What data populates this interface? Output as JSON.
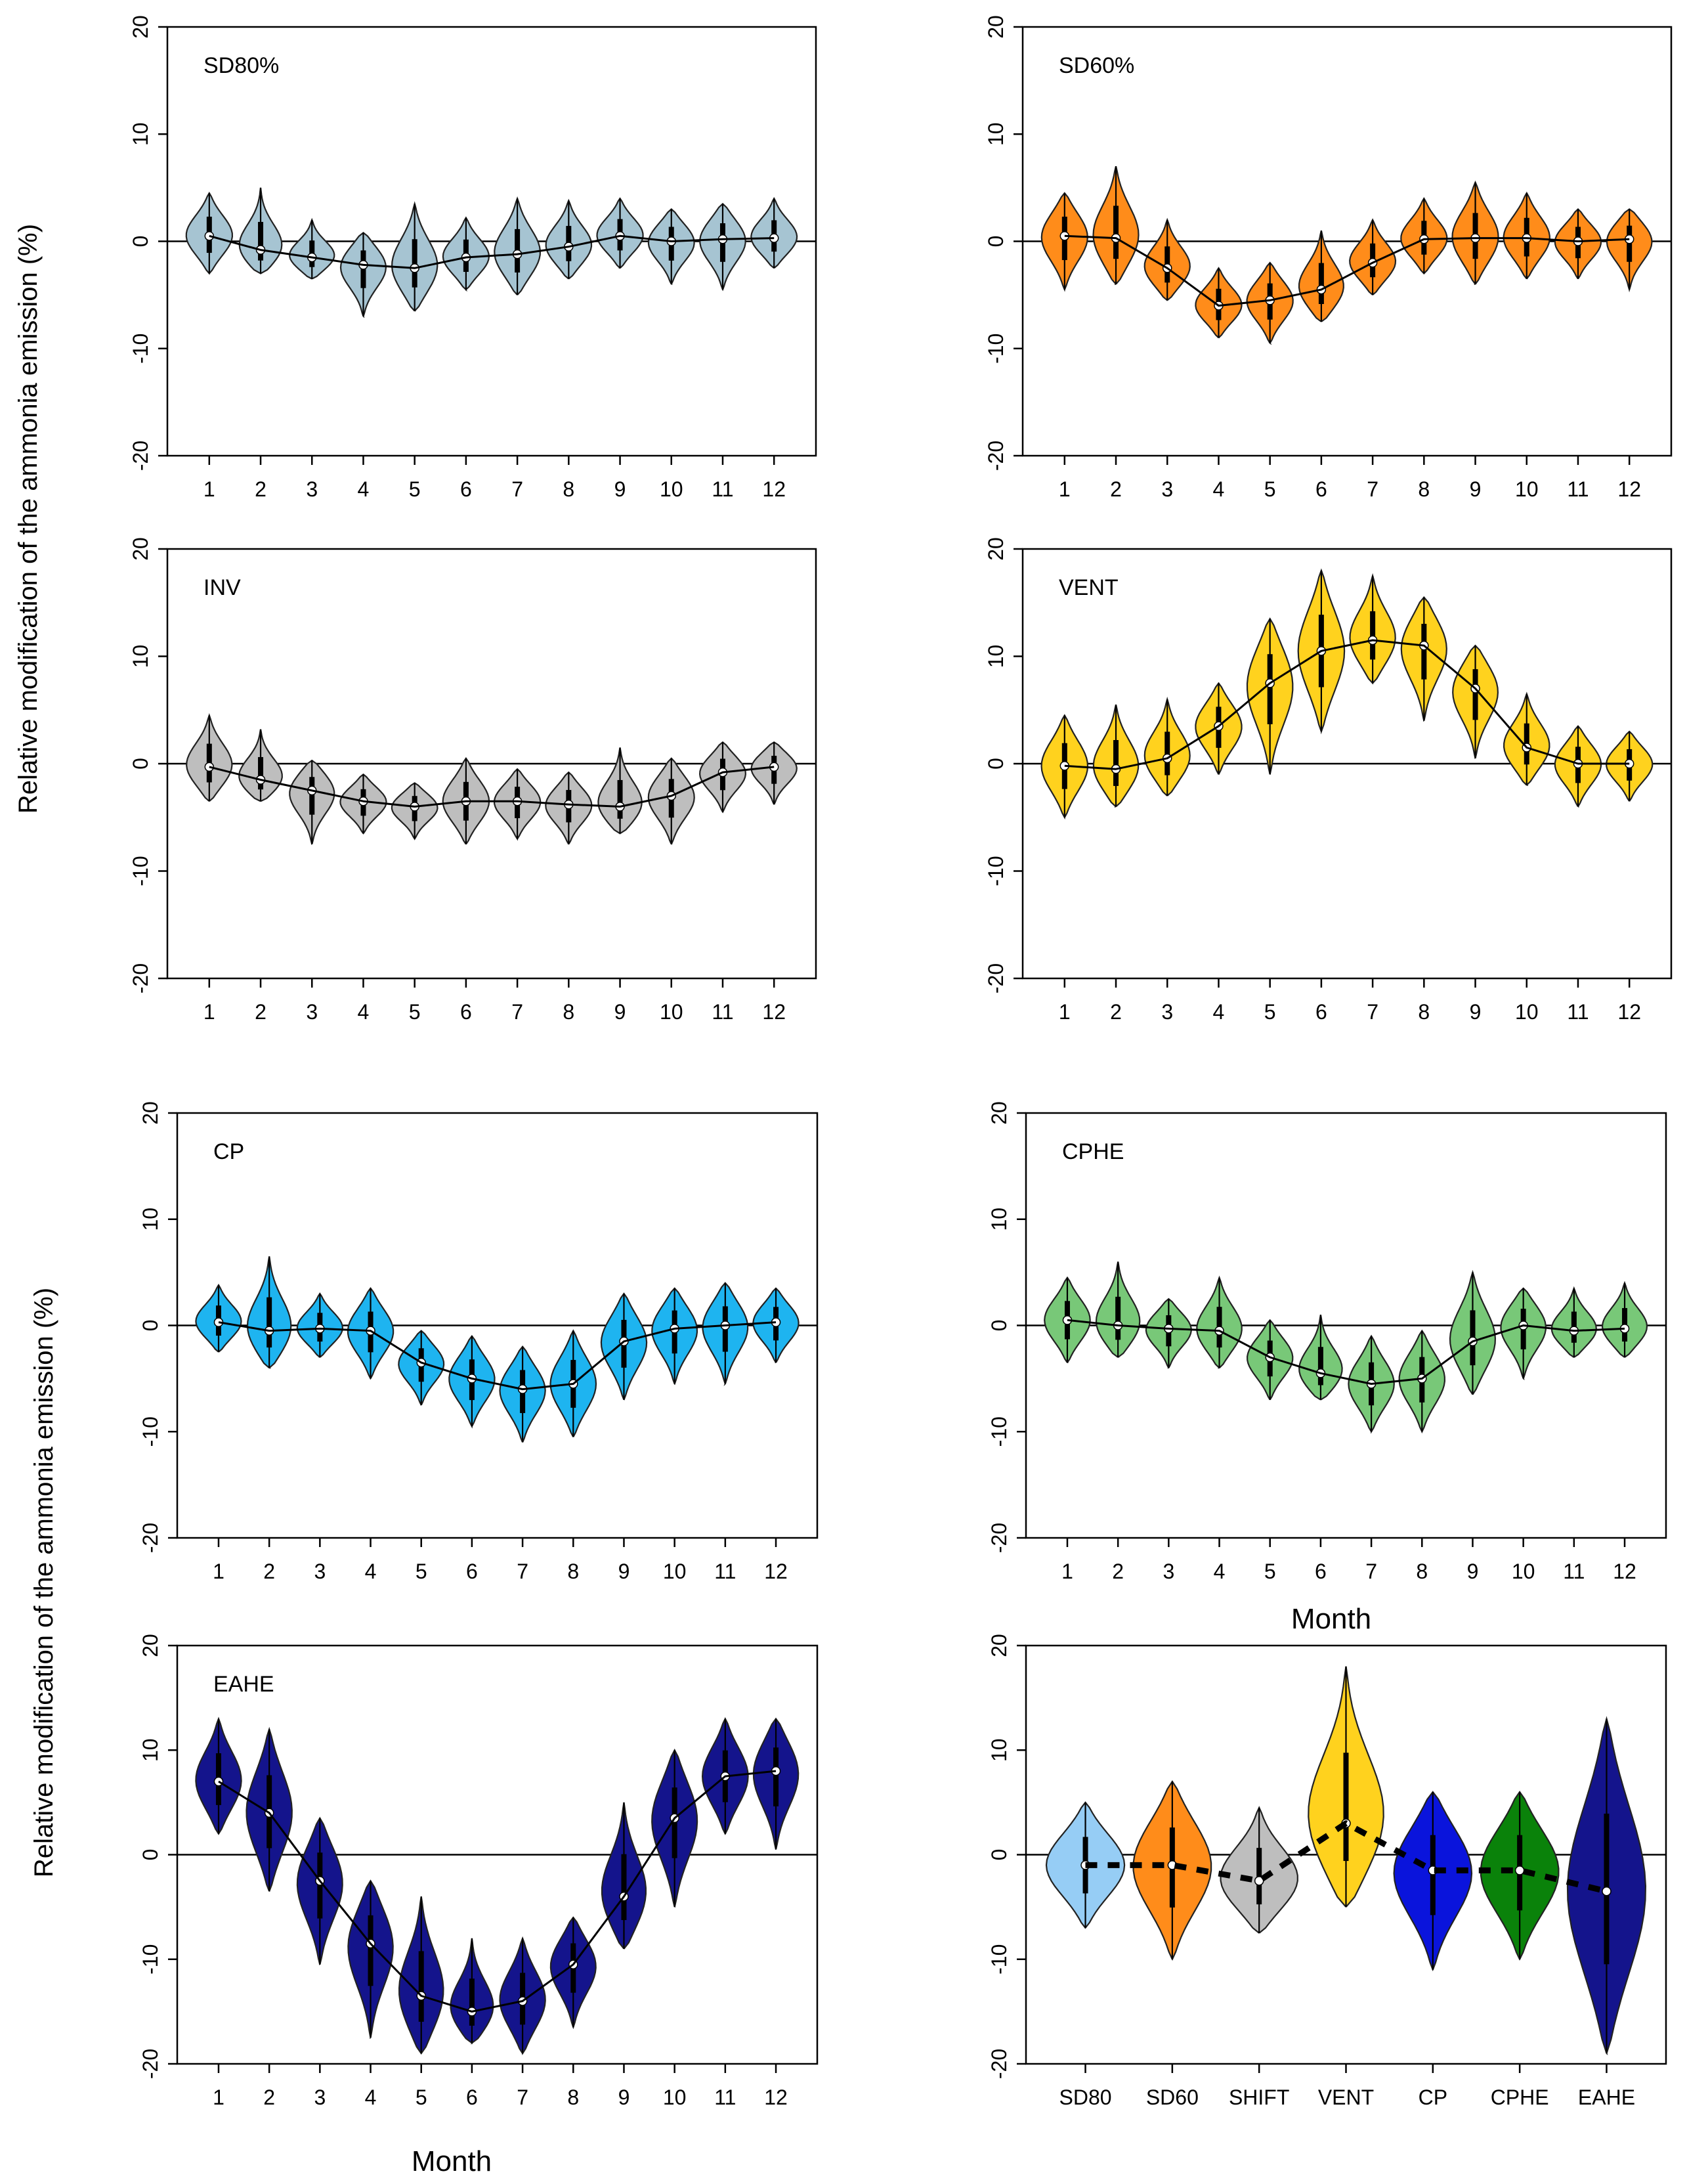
{
  "figure": {
    "ylabel": "Relative modification of the ammonia emission  (%)",
    "xlabel": "Month"
  },
  "chart_data": [
    {
      "type": "violin",
      "title": "SD80%",
      "color": "#A6C4D2",
      "categories": [
        "1",
        "2",
        "3",
        "4",
        "5",
        "6",
        "7",
        "8",
        "9",
        "10",
        "11",
        "12"
      ],
      "medians": [
        0.5,
        -0.8,
        -1.5,
        -2.2,
        -2.5,
        -1.5,
        -1.2,
        -0.5,
        0.5,
        0.0,
        0.2,
        0.3
      ],
      "mins": [
        -3.0,
        -3.0,
        -3.5,
        -7.0,
        -6.5,
        -4.5,
        -5.0,
        -3.5,
        -2.5,
        -4.0,
        -4.5,
        -2.5
      ],
      "maxs": [
        4.5,
        5.0,
        2.0,
        0.8,
        3.5,
        2.2,
        4.0,
        3.8,
        4.0,
        3.0,
        3.5,
        4.0
      ],
      "ylim": [
        -20,
        20
      ],
      "yticks": [
        "-20",
        "-10",
        "0",
        "10",
        "20"
      ]
    },
    {
      "type": "violin",
      "title": "SD60%",
      "color": "#FF8C1A",
      "categories": [
        "1",
        "2",
        "3",
        "4",
        "5",
        "6",
        "7",
        "8",
        "9",
        "10",
        "11",
        "12"
      ],
      "medians": [
        0.5,
        0.3,
        -2.5,
        -6.0,
        -5.5,
        -4.5,
        -2.0,
        0.2,
        0.3,
        0.3,
        0.0,
        0.2
      ],
      "mins": [
        -4.5,
        -4.0,
        -5.5,
        -9.0,
        -9.5,
        -7.5,
        -5.0,
        -3.0,
        -4.0,
        -3.5,
        -3.5,
        -4.5
      ],
      "maxs": [
        4.5,
        7.0,
        2.0,
        -2.5,
        -2.0,
        1.0,
        2.0,
        4.0,
        5.5,
        4.5,
        3.0,
        3.0
      ],
      "ylim": [
        -20,
        20
      ],
      "yticks": [
        "-20",
        "-10",
        "0",
        "10",
        "20"
      ]
    },
    {
      "type": "violin",
      "title": "INV",
      "color": "#BEBEBE",
      "categories": [
        "1",
        "2",
        "3",
        "4",
        "5",
        "6",
        "7",
        "8",
        "9",
        "10",
        "11",
        "12"
      ],
      "medians": [
        -0.3,
        -1.5,
        -2.5,
        -3.5,
        -4.0,
        -3.5,
        -3.5,
        -3.8,
        -4.0,
        -3.0,
        -0.8,
        -0.3
      ],
      "mins": [
        -3.5,
        -3.5,
        -7.5,
        -6.5,
        -7.0,
        -7.5,
        -7.0,
        -7.5,
        -6.5,
        -7.5,
        -4.5,
        -3.8
      ],
      "maxs": [
        4.5,
        3.2,
        0.3,
        -1.0,
        -1.8,
        0.5,
        -0.5,
        -0.8,
        1.5,
        0.5,
        2.0,
        2.0
      ],
      "ylim": [
        -20,
        20
      ],
      "yticks": [
        "-20",
        "-10",
        "0",
        "10",
        "20"
      ]
    },
    {
      "type": "violin",
      "title": "VENT",
      "color": "#FFD21E",
      "categories": [
        "1",
        "2",
        "3",
        "4",
        "5",
        "6",
        "7",
        "8",
        "9",
        "10",
        "11",
        "12"
      ],
      "medians": [
        -0.2,
        -0.5,
        0.5,
        3.5,
        7.5,
        10.5,
        11.5,
        11.0,
        7.0,
        1.5,
        0.0,
        0.0
      ],
      "mins": [
        -5.0,
        -4.0,
        -3.0,
        -1.0,
        -1.0,
        3.0,
        7.5,
        4.0,
        0.5,
        -2.0,
        -4.0,
        -3.5
      ],
      "maxs": [
        4.5,
        5.5,
        6.0,
        7.5,
        13.5,
        18.0,
        17.5,
        15.5,
        11.0,
        6.5,
        3.5,
        3.0
      ],
      "ylim": [
        -20,
        20
      ],
      "yticks": [
        "-20",
        "-10",
        "0",
        "10",
        "20"
      ]
    },
    {
      "type": "violin",
      "title": "CP",
      "color": "#1EB4F0",
      "categories": [
        "1",
        "2",
        "3",
        "4",
        "5",
        "6",
        "7",
        "8",
        "9",
        "10",
        "11",
        "12"
      ],
      "medians": [
        0.3,
        -0.5,
        -0.3,
        -0.5,
        -3.5,
        -5.0,
        -6.0,
        -5.5,
        -1.5,
        -0.3,
        0.0,
        0.3
      ],
      "mins": [
        -2.5,
        -4.0,
        -3.0,
        -5.0,
        -7.5,
        -9.5,
        -11.0,
        -10.5,
        -7.0,
        -5.5,
        -5.5,
        -3.5
      ],
      "maxs": [
        3.8,
        6.5,
        3.0,
        3.5,
        -0.5,
        -1.0,
        -2.0,
        -0.5,
        3.0,
        3.5,
        4.0,
        3.5
      ],
      "ylim": [
        -20,
        20
      ],
      "yticks": [
        "-20",
        "-10",
        "0",
        "10",
        "20"
      ]
    },
    {
      "type": "violin",
      "title": "CPHE",
      "color": "#78C878",
      "categories": [
        "1",
        "2",
        "3",
        "4",
        "5",
        "6",
        "7",
        "8",
        "9",
        "10",
        "11",
        "12"
      ],
      "medians": [
        0.5,
        0.0,
        -0.3,
        -0.5,
        -3.0,
        -4.5,
        -5.5,
        -5.0,
        -1.5,
        0.0,
        -0.5,
        -0.3
      ],
      "mins": [
        -3.5,
        -3.0,
        -4.0,
        -4.0,
        -7.0,
        -7.0,
        -10.0,
        -10.0,
        -6.5,
        -5.0,
        -3.0,
        -3.0
      ],
      "maxs": [
        4.5,
        6.0,
        2.5,
        4.5,
        0.5,
        1.0,
        -1.0,
        -0.5,
        5.0,
        3.5,
        3.5,
        4.0
      ],
      "ylim": [
        -20,
        20
      ],
      "yticks": [
        "-20",
        "-10",
        "0",
        "10",
        "20"
      ]
    },
    {
      "type": "violin",
      "title": "EAHE",
      "color": "#14148C",
      "categories": [
        "1",
        "2",
        "3",
        "4",
        "5",
        "6",
        "7",
        "8",
        "9",
        "10",
        "11",
        "12"
      ],
      "medians": [
        7.0,
        4.0,
        -2.5,
        -8.5,
        -13.5,
        -15.0,
        -14.0,
        -10.5,
        -4.0,
        3.5,
        7.5,
        8.0
      ],
      "mins": [
        2.0,
        -3.5,
        -10.5,
        -17.5,
        -19.0,
        -18.0,
        -19.0,
        -16.5,
        -9.0,
        -5.0,
        2.0,
        0.5
      ],
      "maxs": [
        13.0,
        12.0,
        3.5,
        -2.5,
        -4.0,
        -8.0,
        -8.0,
        -6.0,
        5.0,
        10.0,
        13.0,
        13.0
      ],
      "ylim": [
        -20,
        20
      ],
      "yticks": [
        "-20",
        "-10",
        "0",
        "10",
        "20"
      ]
    },
    {
      "type": "violin",
      "title": "",
      "categories": [
        "SD80",
        "SD60",
        "SHIFT",
        "VENT",
        "CP",
        "CPHE",
        "EAHE"
      ],
      "colors": [
        "#96CDF5",
        "#FF8C1A",
        "#BEBEBE",
        "#FFD21E",
        "#0A14DC",
        "#0A820A",
        "#14148C"
      ],
      "medians": [
        -1.0,
        -1.0,
        -2.5,
        3.0,
        -1.5,
        -1.5,
        -3.5
      ],
      "mins": [
        -7.0,
        -10.0,
        -7.5,
        -5.0,
        -11.0,
        -10.0,
        -19.0
      ],
      "maxs": [
        5.0,
        7.0,
        4.5,
        18.0,
        6.0,
        6.0,
        13.0
      ],
      "ylim": [
        -20,
        20
      ],
      "yticks": [
        "-20",
        "-10",
        "0",
        "10",
        "20"
      ]
    }
  ]
}
